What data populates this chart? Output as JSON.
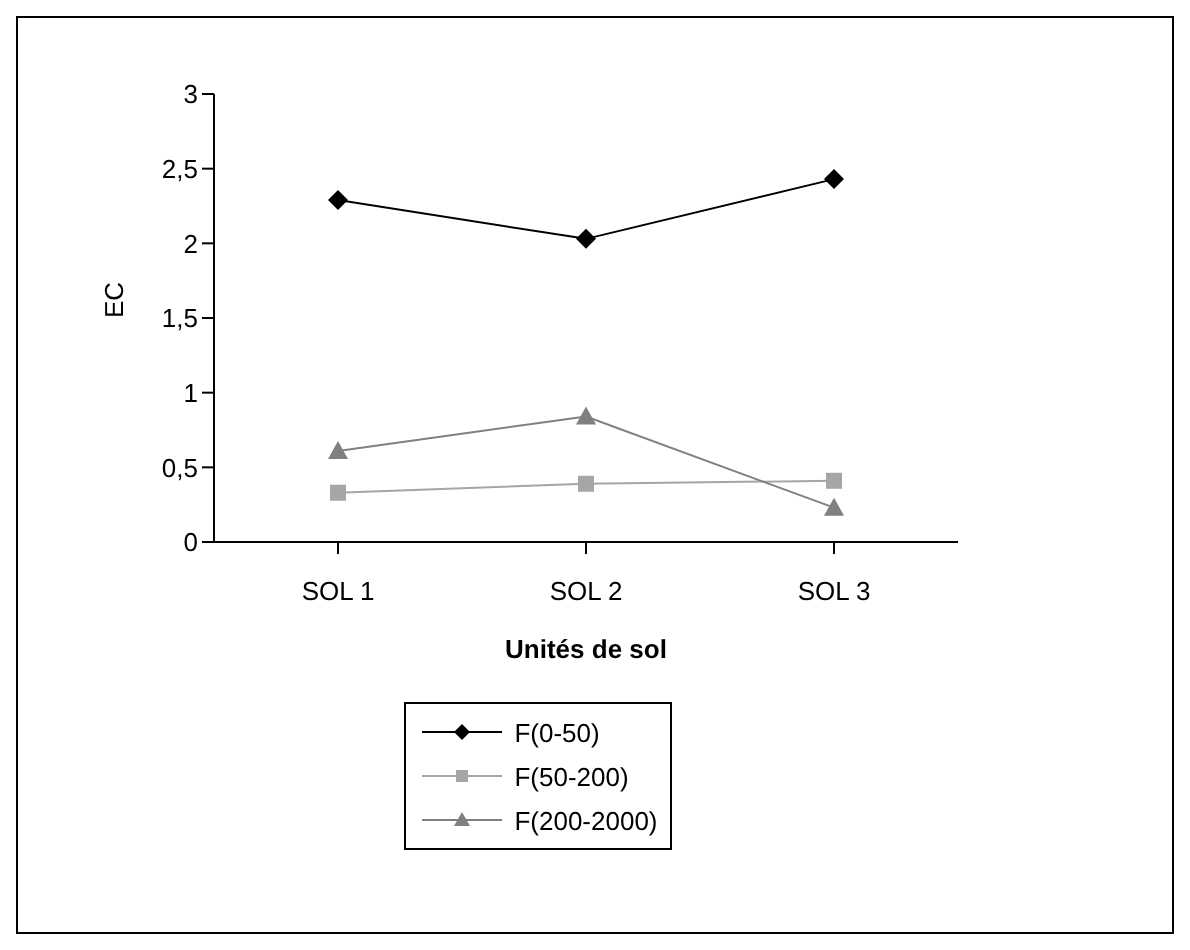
{
  "chart_data": {
    "type": "line",
    "xlabel": "Unités de sol",
    "ylabel": "EC",
    "categories": [
      "SOL 1",
      "SOL 2",
      "SOL 3"
    ],
    "series": [
      {
        "name": "F(0-50)",
        "color": "#000000",
        "marker": "diamond",
        "values": [
          2.29,
          2.03,
          2.43
        ]
      },
      {
        "name": "F(50-200)",
        "color": "#a6a6a6",
        "marker": "square",
        "values": [
          0.33,
          0.39,
          0.41
        ]
      },
      {
        "name": "F(200-2000)",
        "color": "#808080",
        "marker": "triangle",
        "values": [
          0.61,
          0.84,
          0.23
        ]
      }
    ],
    "ylim": [
      0,
      3
    ],
    "yticks": [
      0,
      {
        "value": 0.5,
        "label": "0,5"
      },
      1,
      {
        "value": 1.5,
        "label": "1,5"
      },
      2,
      {
        "value": 2.5,
        "label": "2,5"
      },
      3
    ],
    "grid": false,
    "legend": "bottom"
  }
}
